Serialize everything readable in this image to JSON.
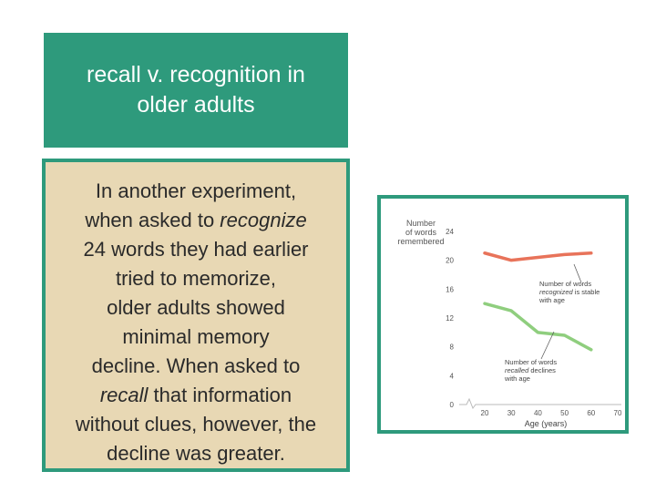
{
  "title": {
    "line1": "recall v. recognition in",
    "line2": "older adults"
  },
  "body": {
    "line1": "In another experiment,",
    "line2_pre": "when asked to ",
    "line2_em": "recognize",
    "line3": "24 words they had earlier",
    "line4": "tried to memorize,",
    "line5": "older adults showed",
    "line6": "minimal memory",
    "line7": "decline. When asked to",
    "line8_em": "recall",
    "line8_post": " that information",
    "line9": "without clues, however, the",
    "line10": "decline was greater."
  },
  "colors": {
    "accent": "#2e9a7c",
    "body_bg": "#e8d8b4",
    "recognized_series": "#e8735a",
    "recalled_series": "#8fce7e"
  },
  "chart_data": {
    "type": "line",
    "ylabel_lines": [
      "Number",
      "of words",
      "remembered"
    ],
    "xlabel": "Age (years)",
    "x_ticks": [
      20,
      30,
      40,
      50,
      60,
      70
    ],
    "y_ticks": [
      0,
      4,
      8,
      12,
      16,
      20,
      24
    ],
    "xlim": [
      20,
      70
    ],
    "ylim": [
      0,
      24
    ],
    "grid": false,
    "series": [
      {
        "key": "recognized",
        "x": [
          20,
          30,
          40,
          50,
          60
        ],
        "values": [
          21,
          20,
          20.4,
          20.8,
          21
        ]
      },
      {
        "key": "recalled",
        "x": [
          20,
          30,
          40,
          50,
          60
        ],
        "values": [
          14,
          13,
          10,
          9.6,
          7.6
        ]
      }
    ],
    "annotations": [
      {
        "target": "recognized",
        "lines": [
          [
            {
              "t": "Number of words",
              "i": false
            }
          ],
          [
            {
              "t": "recognized",
              "i": true
            },
            {
              "t": " is stable",
              "i": false
            }
          ],
          [
            {
              "t": "with age",
              "i": false
            }
          ]
        ]
      },
      {
        "target": "recalled",
        "lines": [
          [
            {
              "t": "Number of words",
              "i": false
            }
          ],
          [
            {
              "t": "recalled",
              "i": true
            },
            {
              "t": " declines",
              "i": false
            }
          ],
          [
            {
              "t": "with age",
              "i": false
            }
          ]
        ]
      }
    ]
  }
}
